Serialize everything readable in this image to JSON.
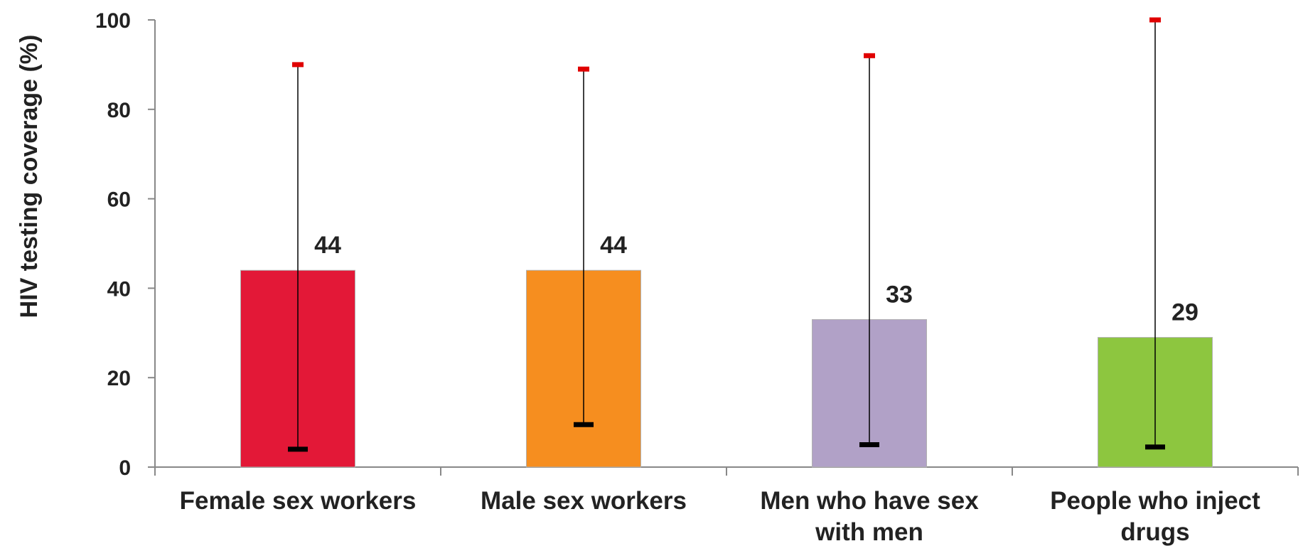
{
  "chart_data": {
    "type": "bar",
    "categories": [
      [
        "Female sex workers"
      ],
      [
        "Male sex workers"
      ],
      [
        "Men who have sex",
        "with men"
      ],
      [
        "People who inject",
        "drugs"
      ]
    ],
    "values": [
      44,
      44,
      33,
      29
    ],
    "value_labels": [
      "44",
      "44",
      "33",
      "29"
    ],
    "error_low": [
      4,
      9.5,
      5,
      4.5
    ],
    "error_high": [
      90,
      89,
      92,
      100
    ],
    "bar_colors": [
      "#e31837",
      "#f68e1f",
      "#b1a1c7",
      "#8dc63f"
    ],
    "error_low_color": "#000000",
    "error_high_color": "#e00000",
    "title": "",
    "xlabel": "",
    "ylabel": "HIV testing coverage (%)",
    "ylim": [
      0,
      100
    ],
    "yticks": [
      0,
      20,
      40,
      60,
      80,
      100
    ],
    "grid": false,
    "legend": false
  }
}
